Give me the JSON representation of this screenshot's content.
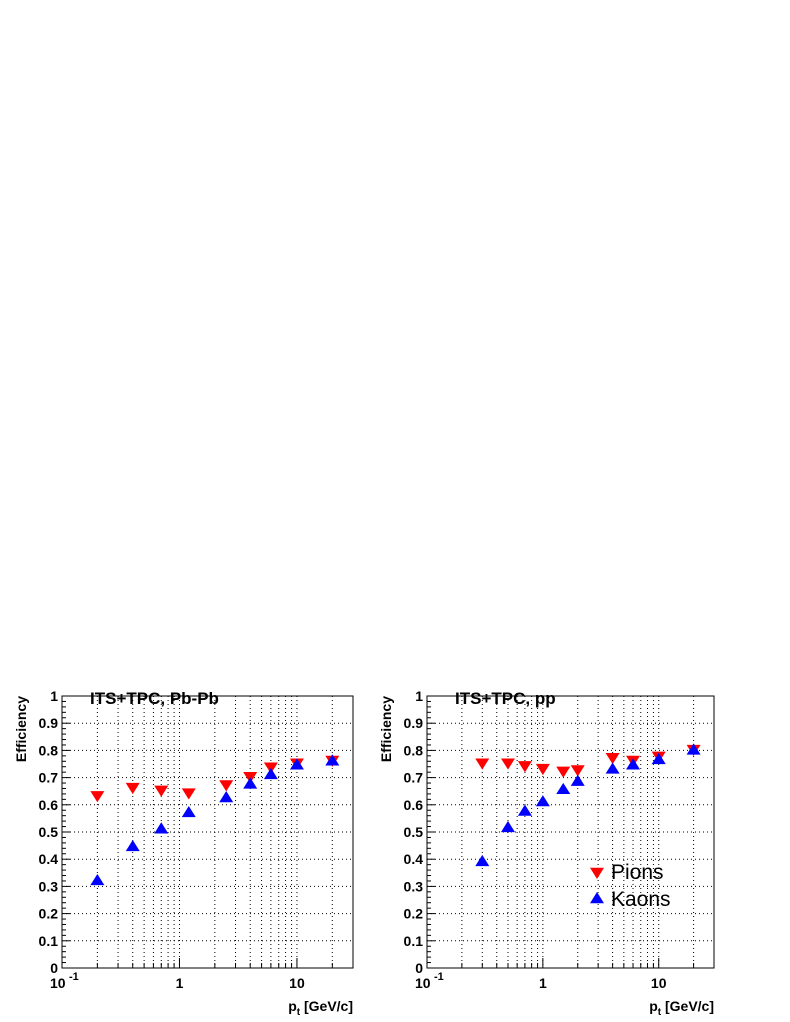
{
  "chart_data": [
    {
      "type": "scatter",
      "title": "ITS+TPC, Pb-Pb",
      "xlabel": "p_t [GeV/c]",
      "xlabel_main": "p",
      "xlabel_sub": "t",
      "xlabel_rest": " [GeV/c]",
      "ylabel": "Efficiency",
      "xscale": "log",
      "xlim": [
        0.1,
        30
      ],
      "ylim": [
        0,
        1
      ],
      "x_ticks": [
        {
          "value": 0.1,
          "base": "10",
          "exp": "-1"
        },
        {
          "value": 1,
          "label": "1"
        },
        {
          "value": 10,
          "label": "10"
        }
      ],
      "y_ticks": [
        "0",
        "0.1",
        "0.2",
        "0.3",
        "0.4",
        "0.5",
        "0.6",
        "0.7",
        "0.8",
        "0.9",
        "1"
      ],
      "grid": true,
      "legend": null,
      "series": [
        {
          "name": "Pions",
          "marker": "triangle-down",
          "color": "#ff0000",
          "x": [
            0.2,
            0.4,
            0.7,
            1.2,
            2.5,
            4,
            6,
            10,
            20
          ],
          "y": [
            0.635,
            0.665,
            0.655,
            0.645,
            0.675,
            0.705,
            0.74,
            0.755,
            0.765
          ]
        },
        {
          "name": "Kaons",
          "marker": "triangle-up",
          "color": "#0000ff",
          "x": [
            0.2,
            0.4,
            0.7,
            1.2,
            2.5,
            4,
            6,
            10,
            20
          ],
          "y": [
            0.32,
            0.445,
            0.51,
            0.57,
            0.625,
            0.675,
            0.71,
            0.745,
            0.76
          ]
        }
      ]
    },
    {
      "type": "scatter",
      "title": "ITS+TPC, pp",
      "xlabel": "p_t [GeV/c]",
      "xlabel_main": "p",
      "xlabel_sub": "t",
      "xlabel_rest": " [GeV/c]",
      "ylabel": "Efficiency",
      "xscale": "log",
      "xlim": [
        0.1,
        30
      ],
      "ylim": [
        0,
        1
      ],
      "x_ticks": [
        {
          "value": 0.1,
          "base": "10",
          "exp": "-1"
        },
        {
          "value": 1,
          "label": "1"
        },
        {
          "value": 10,
          "label": "10"
        }
      ],
      "y_ticks": [
        "0",
        "0.1",
        "0.2",
        "0.3",
        "0.4",
        "0.5",
        "0.6",
        "0.7",
        "0.8",
        "0.9",
        "1"
      ],
      "grid": true,
      "legend": "bottom-right",
      "series": [
        {
          "name": "Pions",
          "marker": "triangle-down",
          "color": "#ff0000",
          "x": [
            0.3,
            0.5,
            0.7,
            1,
            1.5,
            2,
            4,
            6,
            10,
            20
          ],
          "y": [
            0.755,
            0.755,
            0.745,
            0.735,
            0.725,
            0.73,
            0.775,
            0.765,
            0.78,
            0.805
          ]
        },
        {
          "name": "Kaons",
          "marker": "triangle-up",
          "color": "#0000ff",
          "x": [
            0.3,
            0.5,
            0.7,
            1,
            1.5,
            2,
            4,
            6,
            10,
            20
          ],
          "y": [
            0.39,
            0.515,
            0.575,
            0.61,
            0.655,
            0.685,
            0.73,
            0.745,
            0.765,
            0.8
          ]
        }
      ]
    }
  ]
}
